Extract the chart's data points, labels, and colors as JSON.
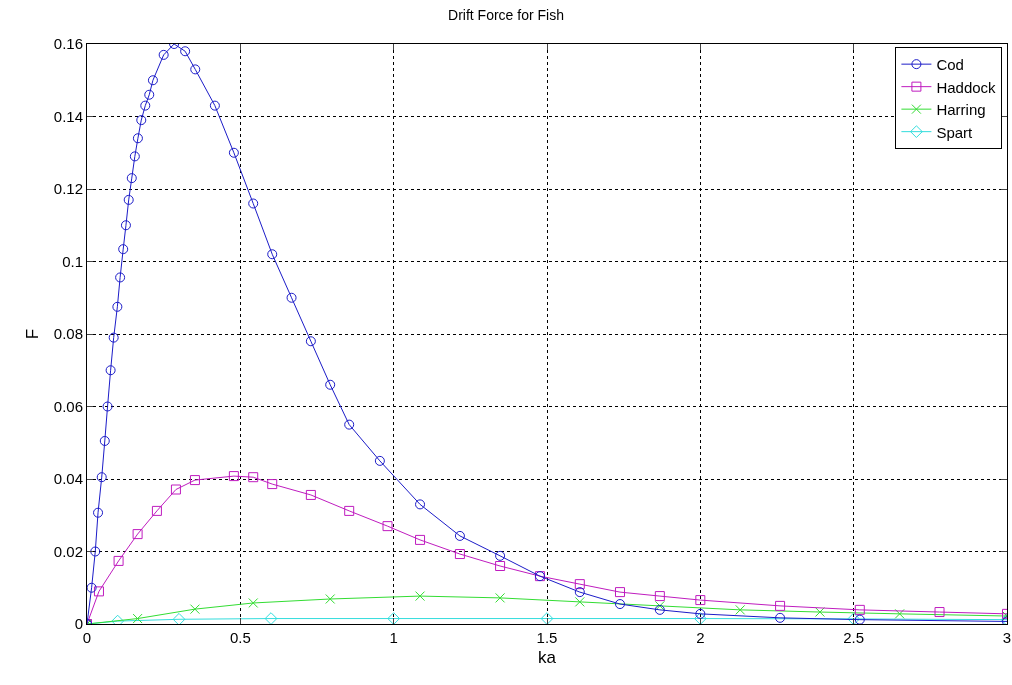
{
  "chart_data": {
    "type": "line",
    "title": "Drift Force for Fish",
    "xlabel": "ka",
    "ylabel": "F",
    "xlim": [
      0,
      3
    ],
    "xticks": [
      0,
      0.5,
      1,
      1.5,
      2,
      2.5,
      3
    ],
    "ylim": [
      0,
      0.16
    ],
    "yticks": [
      0,
      0.02,
      0.04,
      0.06,
      0.08,
      0.1,
      0.12,
      0.14,
      0.16
    ],
    "grid": true,
    "legend": "top right",
    "line_style": "solid",
    "series": [
      {
        "name": "Cod",
        "color": "#1c1cc8",
        "marker": "circle",
        "x": [
          0,
          0.015,
          0.027,
          0.036,
          0.048,
          0.058,
          0.067,
          0.077,
          0.087,
          0.099,
          0.108,
          0.118,
          0.127,
          0.136,
          0.146,
          0.156,
          0.166,
          0.177,
          0.19,
          0.203,
          0.215,
          0.25,
          0.284,
          0.32,
          0.353,
          0.417,
          0.479,
          0.542,
          0.604,
          0.667,
          0.73,
          0.793,
          0.855,
          0.955,
          1.086,
          1.216,
          1.347,
          1.477,
          1.607,
          1.738,
          1.868,
          2,
          2.26,
          2.52,
          3
        ],
        "values": [
          0,
          0.01,
          0.02,
          0.0307,
          0.0405,
          0.0505,
          0.06,
          0.07,
          0.079,
          0.0875,
          0.0956,
          0.1034,
          0.11,
          0.117,
          0.123,
          0.129,
          0.134,
          0.139,
          0.143,
          0.146,
          0.15,
          0.157,
          0.16,
          0.158,
          0.153,
          0.143,
          0.13,
          0.116,
          0.102,
          0.09,
          0.078,
          0.066,
          0.055,
          0.045,
          0.033,
          0.0243,
          0.0188,
          0.0132,
          0.0088,
          0.0055,
          0.0039,
          0.0028,
          0.0017,
          0.0012,
          0.0007
        ]
      },
      {
        "name": "Haddock",
        "color": "#bf1cbf",
        "marker": "square",
        "x": [
          0,
          0.039,
          0.103,
          0.165,
          0.228,
          0.29,
          0.352,
          0.479,
          0.542,
          0.604,
          0.73,
          0.855,
          0.98,
          1.086,
          1.216,
          1.347,
          1.477,
          1.607,
          1.738,
          1.868,
          2,
          2.26,
          2.52,
          2.78,
          3
        ],
        "values": [
          0,
          0.009,
          0.0174,
          0.0248,
          0.0312,
          0.0371,
          0.0397,
          0.0408,
          0.0405,
          0.0386,
          0.0356,
          0.0312,
          0.027,
          0.0232,
          0.0193,
          0.016,
          0.0132,
          0.011,
          0.0088,
          0.0077,
          0.0066,
          0.005,
          0.0039,
          0.0033,
          0.0028
        ]
      },
      {
        "name": "Harring",
        "color": "#33dd33",
        "marker": "cross",
        "x": [
          0,
          0.165,
          0.352,
          0.542,
          0.793,
          1.086,
          1.347,
          1.607,
          1.868,
          2.13,
          2.39,
          2.65,
          3
        ],
        "values": [
          0,
          0.0015,
          0.0041,
          0.0058,
          0.0069,
          0.0077,
          0.0072,
          0.0061,
          0.005,
          0.0039,
          0.0033,
          0.0028,
          0.0022
        ]
      },
      {
        "name": "Spart",
        "color": "#33dddd",
        "marker": "diamond",
        "x": [
          0,
          0.1,
          0.3,
          0.6,
          1,
          1.5,
          2,
          2.5,
          3
        ],
        "values": [
          0,
          0.0008,
          0.0013,
          0.0015,
          0.0015,
          0.0015,
          0.0015,
          0.0014,
          0.0012
        ]
      }
    ]
  }
}
